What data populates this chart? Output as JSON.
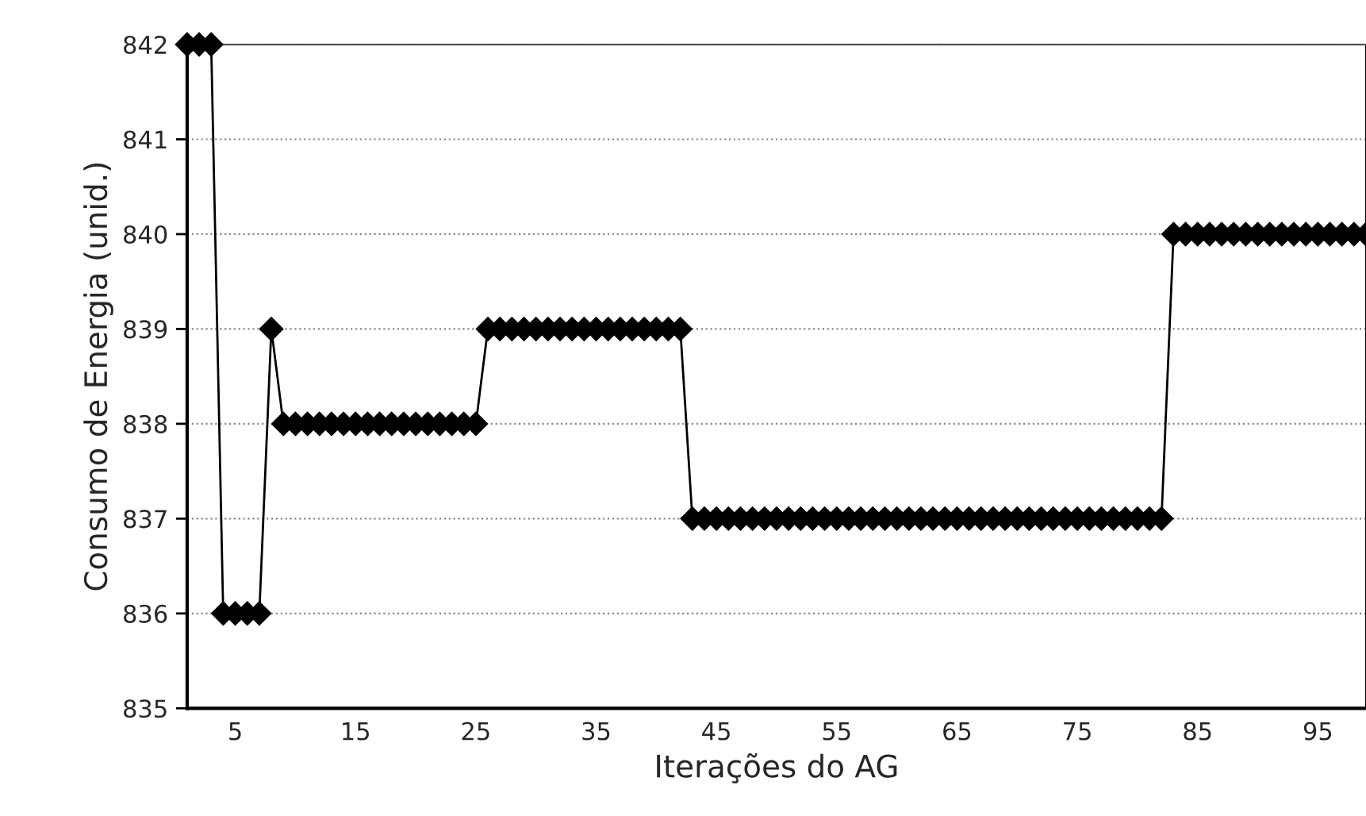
{
  "chart_data": {
    "type": "line",
    "xlabel": "Iterações do AG",
    "ylabel": "Consumo de Energia (unid.)",
    "x": [
      1,
      2,
      3,
      4,
      5,
      6,
      7,
      8,
      9,
      10,
      11,
      12,
      13,
      14,
      15,
      16,
      17,
      18,
      19,
      20,
      21,
      22,
      23,
      24,
      25,
      26,
      27,
      28,
      29,
      30,
      31,
      32,
      33,
      34,
      35,
      36,
      37,
      38,
      39,
      40,
      41,
      42,
      43,
      44,
      45,
      46,
      47,
      48,
      49,
      50,
      51,
      52,
      53,
      54,
      55,
      56,
      57,
      58,
      59,
      60,
      61,
      62,
      63,
      64,
      65,
      66,
      67,
      68,
      69,
      70,
      71,
      72,
      73,
      74,
      75,
      76,
      77,
      78,
      79,
      80,
      81,
      82,
      83,
      84,
      85,
      86,
      87,
      88,
      89,
      90,
      91,
      92,
      93,
      94,
      95,
      96,
      97,
      98,
      99
    ],
    "series": [
      {
        "color": "#000000",
        "values": [
          842,
          842,
          842,
          836,
          836,
          836,
          836,
          839,
          838,
          838,
          838,
          838,
          838,
          838,
          838,
          838,
          838,
          838,
          838,
          838,
          838,
          838,
          838,
          838,
          838,
          839,
          839,
          839,
          839,
          839,
          839,
          839,
          839,
          839,
          839,
          839,
          839,
          839,
          839,
          839,
          839,
          839,
          837,
          837,
          837,
          837,
          837,
          837,
          837,
          837,
          837,
          837,
          837,
          837,
          837,
          837,
          837,
          837,
          837,
          837,
          837,
          837,
          837,
          837,
          837,
          837,
          837,
          837,
          837,
          837,
          837,
          837,
          837,
          837,
          837,
          837,
          837,
          837,
          837,
          837,
          837,
          837,
          840,
          840,
          840,
          840,
          840,
          840,
          840,
          840,
          840,
          840,
          840,
          840,
          840,
          840,
          840,
          840,
          840
        ]
      }
    ],
    "xlim": [
      1,
      99
    ],
    "xticks": [
      5,
      15,
      25,
      35,
      45,
      55,
      65,
      75,
      85,
      95
    ],
    "ylim": [
      835,
      842
    ],
    "yticks": [
      835,
      836,
      837,
      838,
      839,
      840,
      841,
      842
    ],
    "grid": "y",
    "marker": "diamond",
    "line_style": "solid",
    "legend": false
  }
}
